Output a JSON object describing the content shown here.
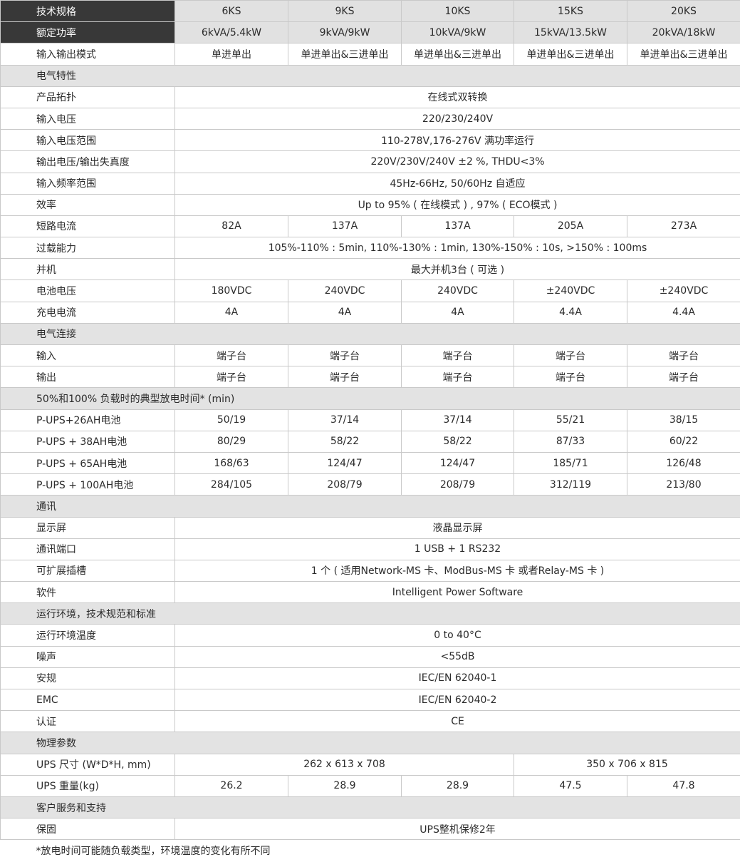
{
  "rows": [
    {
      "type": "head",
      "label": "技术规格",
      "cells": [
        {
          "v": "6KS"
        },
        {
          "v": "9KS"
        },
        {
          "v": "10KS"
        },
        {
          "v": "15KS"
        },
        {
          "v": "20KS"
        }
      ]
    },
    {
      "type": "head",
      "label": "额定功率",
      "cells": [
        {
          "v": "6kVA/5.4kW"
        },
        {
          "v": "9kVA/9kW"
        },
        {
          "v": "10kVA/9kW"
        },
        {
          "v": "15kVA/13.5kW"
        },
        {
          "v": "20kVA/18kW"
        }
      ]
    },
    {
      "type": "row",
      "label": "输入输出模式",
      "cells": [
        {
          "v": "单进单出"
        },
        {
          "v": "单进单出&三进单出"
        },
        {
          "v": "单进单出&三进单出"
        },
        {
          "v": "单进单出&三进单出"
        },
        {
          "v": "单进单出&三进单出"
        }
      ]
    },
    {
      "type": "section",
      "label": "电气特性"
    },
    {
      "type": "row",
      "label": "产品拓扑",
      "cells": [
        {
          "v": "在线式双转换",
          "span": 5
        }
      ]
    },
    {
      "type": "row",
      "label": "输入电压",
      "cells": [
        {
          "v": "220/230/240V",
          "span": 5
        }
      ]
    },
    {
      "type": "row",
      "label": "输入电压范围",
      "cells": [
        {
          "v": "110-278V,176-276V 满功率运行",
          "span": 5
        }
      ]
    },
    {
      "type": "row",
      "label": "输出电压/输出失真度",
      "cells": [
        {
          "v": "220V/230V/240V ±2 %, THDU<3%",
          "span": 5
        }
      ]
    },
    {
      "type": "row",
      "label": "输入频率范围",
      "cells": [
        {
          "v": "45Hz-66Hz, 50/60Hz 自适应",
          "span": 5
        }
      ]
    },
    {
      "type": "row",
      "label": "效率",
      "cells": [
        {
          "v": "Up to 95% ( 在线模式 ) , 97% ( ECO模式 )",
          "span": 5
        }
      ]
    },
    {
      "type": "row",
      "label": "短路电流",
      "cells": [
        {
          "v": "82A"
        },
        {
          "v": "137A"
        },
        {
          "v": "137A"
        },
        {
          "v": "205A"
        },
        {
          "v": "273A"
        }
      ]
    },
    {
      "type": "row",
      "label": "过载能力",
      "cells": [
        {
          "v": "105%-110% : 5min, 110%-130% : 1min, 130%-150% : 10s, >150% : 100ms",
          "span": 5
        }
      ]
    },
    {
      "type": "row",
      "label": "并机",
      "cells": [
        {
          "v": "最大并机3台 ( 可选 )",
          "span": 5
        }
      ]
    },
    {
      "type": "row",
      "label": "电池电压",
      "cells": [
        {
          "v": "180VDC"
        },
        {
          "v": "240VDC"
        },
        {
          "v": "240VDC"
        },
        {
          "v": "±240VDC"
        },
        {
          "v": "±240VDC"
        }
      ]
    },
    {
      "type": "row",
      "label": "充电电流",
      "cells": [
        {
          "v": "4A"
        },
        {
          "v": "4A"
        },
        {
          "v": "4A"
        },
        {
          "v": "4.4A"
        },
        {
          "v": "4.4A"
        }
      ]
    },
    {
      "type": "section",
      "label": "电气连接"
    },
    {
      "type": "row",
      "label": "输入",
      "cells": [
        {
          "v": "端子台"
        },
        {
          "v": "端子台"
        },
        {
          "v": "端子台"
        },
        {
          "v": "端子台"
        },
        {
          "v": "端子台"
        }
      ]
    },
    {
      "type": "row",
      "label": "输出",
      "cells": [
        {
          "v": "端子台"
        },
        {
          "v": "端子台"
        },
        {
          "v": "端子台"
        },
        {
          "v": "端子台"
        },
        {
          "v": "端子台"
        }
      ]
    },
    {
      "type": "section",
      "label": "50%和100% 负载时的典型放电时间* (min)"
    },
    {
      "type": "row",
      "label": "P-UPS+26AH电池",
      "cells": [
        {
          "v": "50/19"
        },
        {
          "v": "37/14"
        },
        {
          "v": "37/14"
        },
        {
          "v": "55/21"
        },
        {
          "v": "38/15"
        }
      ]
    },
    {
      "type": "row",
      "label": "P-UPS + 38AH电池",
      "cells": [
        {
          "v": "80/29"
        },
        {
          "v": "58/22"
        },
        {
          "v": "58/22"
        },
        {
          "v": "87/33"
        },
        {
          "v": "60/22"
        }
      ]
    },
    {
      "type": "row",
      "label": "P-UPS + 65AH电池",
      "cells": [
        {
          "v": "168/63"
        },
        {
          "v": "124/47"
        },
        {
          "v": "124/47"
        },
        {
          "v": "185/71"
        },
        {
          "v": "126/48"
        }
      ]
    },
    {
      "type": "row",
      "label": "P-UPS + 100AH电池",
      "cells": [
        {
          "v": "284/105"
        },
        {
          "v": "208/79"
        },
        {
          "v": "208/79"
        },
        {
          "v": "312/119"
        },
        {
          "v": "213/80"
        }
      ]
    },
    {
      "type": "section",
      "label": "通讯"
    },
    {
      "type": "row",
      "label": "显示屏",
      "cells": [
        {
          "v": "液晶显示屏",
          "span": 5
        }
      ]
    },
    {
      "type": "row",
      "label": "通讯端口",
      "cells": [
        {
          "v": "1 USB + 1 RS232",
          "span": 5
        }
      ]
    },
    {
      "type": "row",
      "label": "可扩展插槽",
      "cells": [
        {
          "v": "1 个 ( 适用Network-MS 卡、ModBus-MS 卡 或者Relay-MS 卡 )",
          "span": 5
        }
      ]
    },
    {
      "type": "row",
      "label": "软件",
      "cells": [
        {
          "v": "Intelligent Power Software",
          "span": 5
        }
      ]
    },
    {
      "type": "section",
      "label": "运行环境，技术规范和标准"
    },
    {
      "type": "row",
      "label": "运行环境温度",
      "cells": [
        {
          "v": "0 to 40°C",
          "span": 5
        }
      ]
    },
    {
      "type": "row",
      "label": "噪声",
      "cells": [
        {
          "v": "<55dB",
          "span": 5
        }
      ]
    },
    {
      "type": "row",
      "label": "安规",
      "cells": [
        {
          "v": "IEC/EN 62040-1",
          "span": 5
        }
      ]
    },
    {
      "type": "row",
      "label": "EMC",
      "cells": [
        {
          "v": "IEC/EN 62040-2",
          "span": 5
        }
      ]
    },
    {
      "type": "row",
      "label": "认证",
      "cells": [
        {
          "v": "CE",
          "span": 5
        }
      ]
    },
    {
      "type": "section",
      "label": "物理参数"
    },
    {
      "type": "row",
      "label": "UPS 尺寸 (W*D*H, mm)",
      "cells": [
        {
          "v": "262 x 613 x 708",
          "span": 3
        },
        {
          "v": "350 x 706 x 815",
          "span": 2
        }
      ]
    },
    {
      "type": "row",
      "label": "UPS 重量(kg)",
      "cells": [
        {
          "v": "26.2"
        },
        {
          "v": "28.9"
        },
        {
          "v": "28.9"
        },
        {
          "v": "47.5"
        },
        {
          "v": "47.8"
        }
      ]
    },
    {
      "type": "section",
      "label": "客户服务和支持"
    },
    {
      "type": "row",
      "label": "保固",
      "cells": [
        {
          "v": "UPS整机保修2年",
          "span": 5
        }
      ]
    },
    {
      "type": "note",
      "label": "*放电时间可能随负载类型，环境温度的变化有所不同"
    }
  ]
}
